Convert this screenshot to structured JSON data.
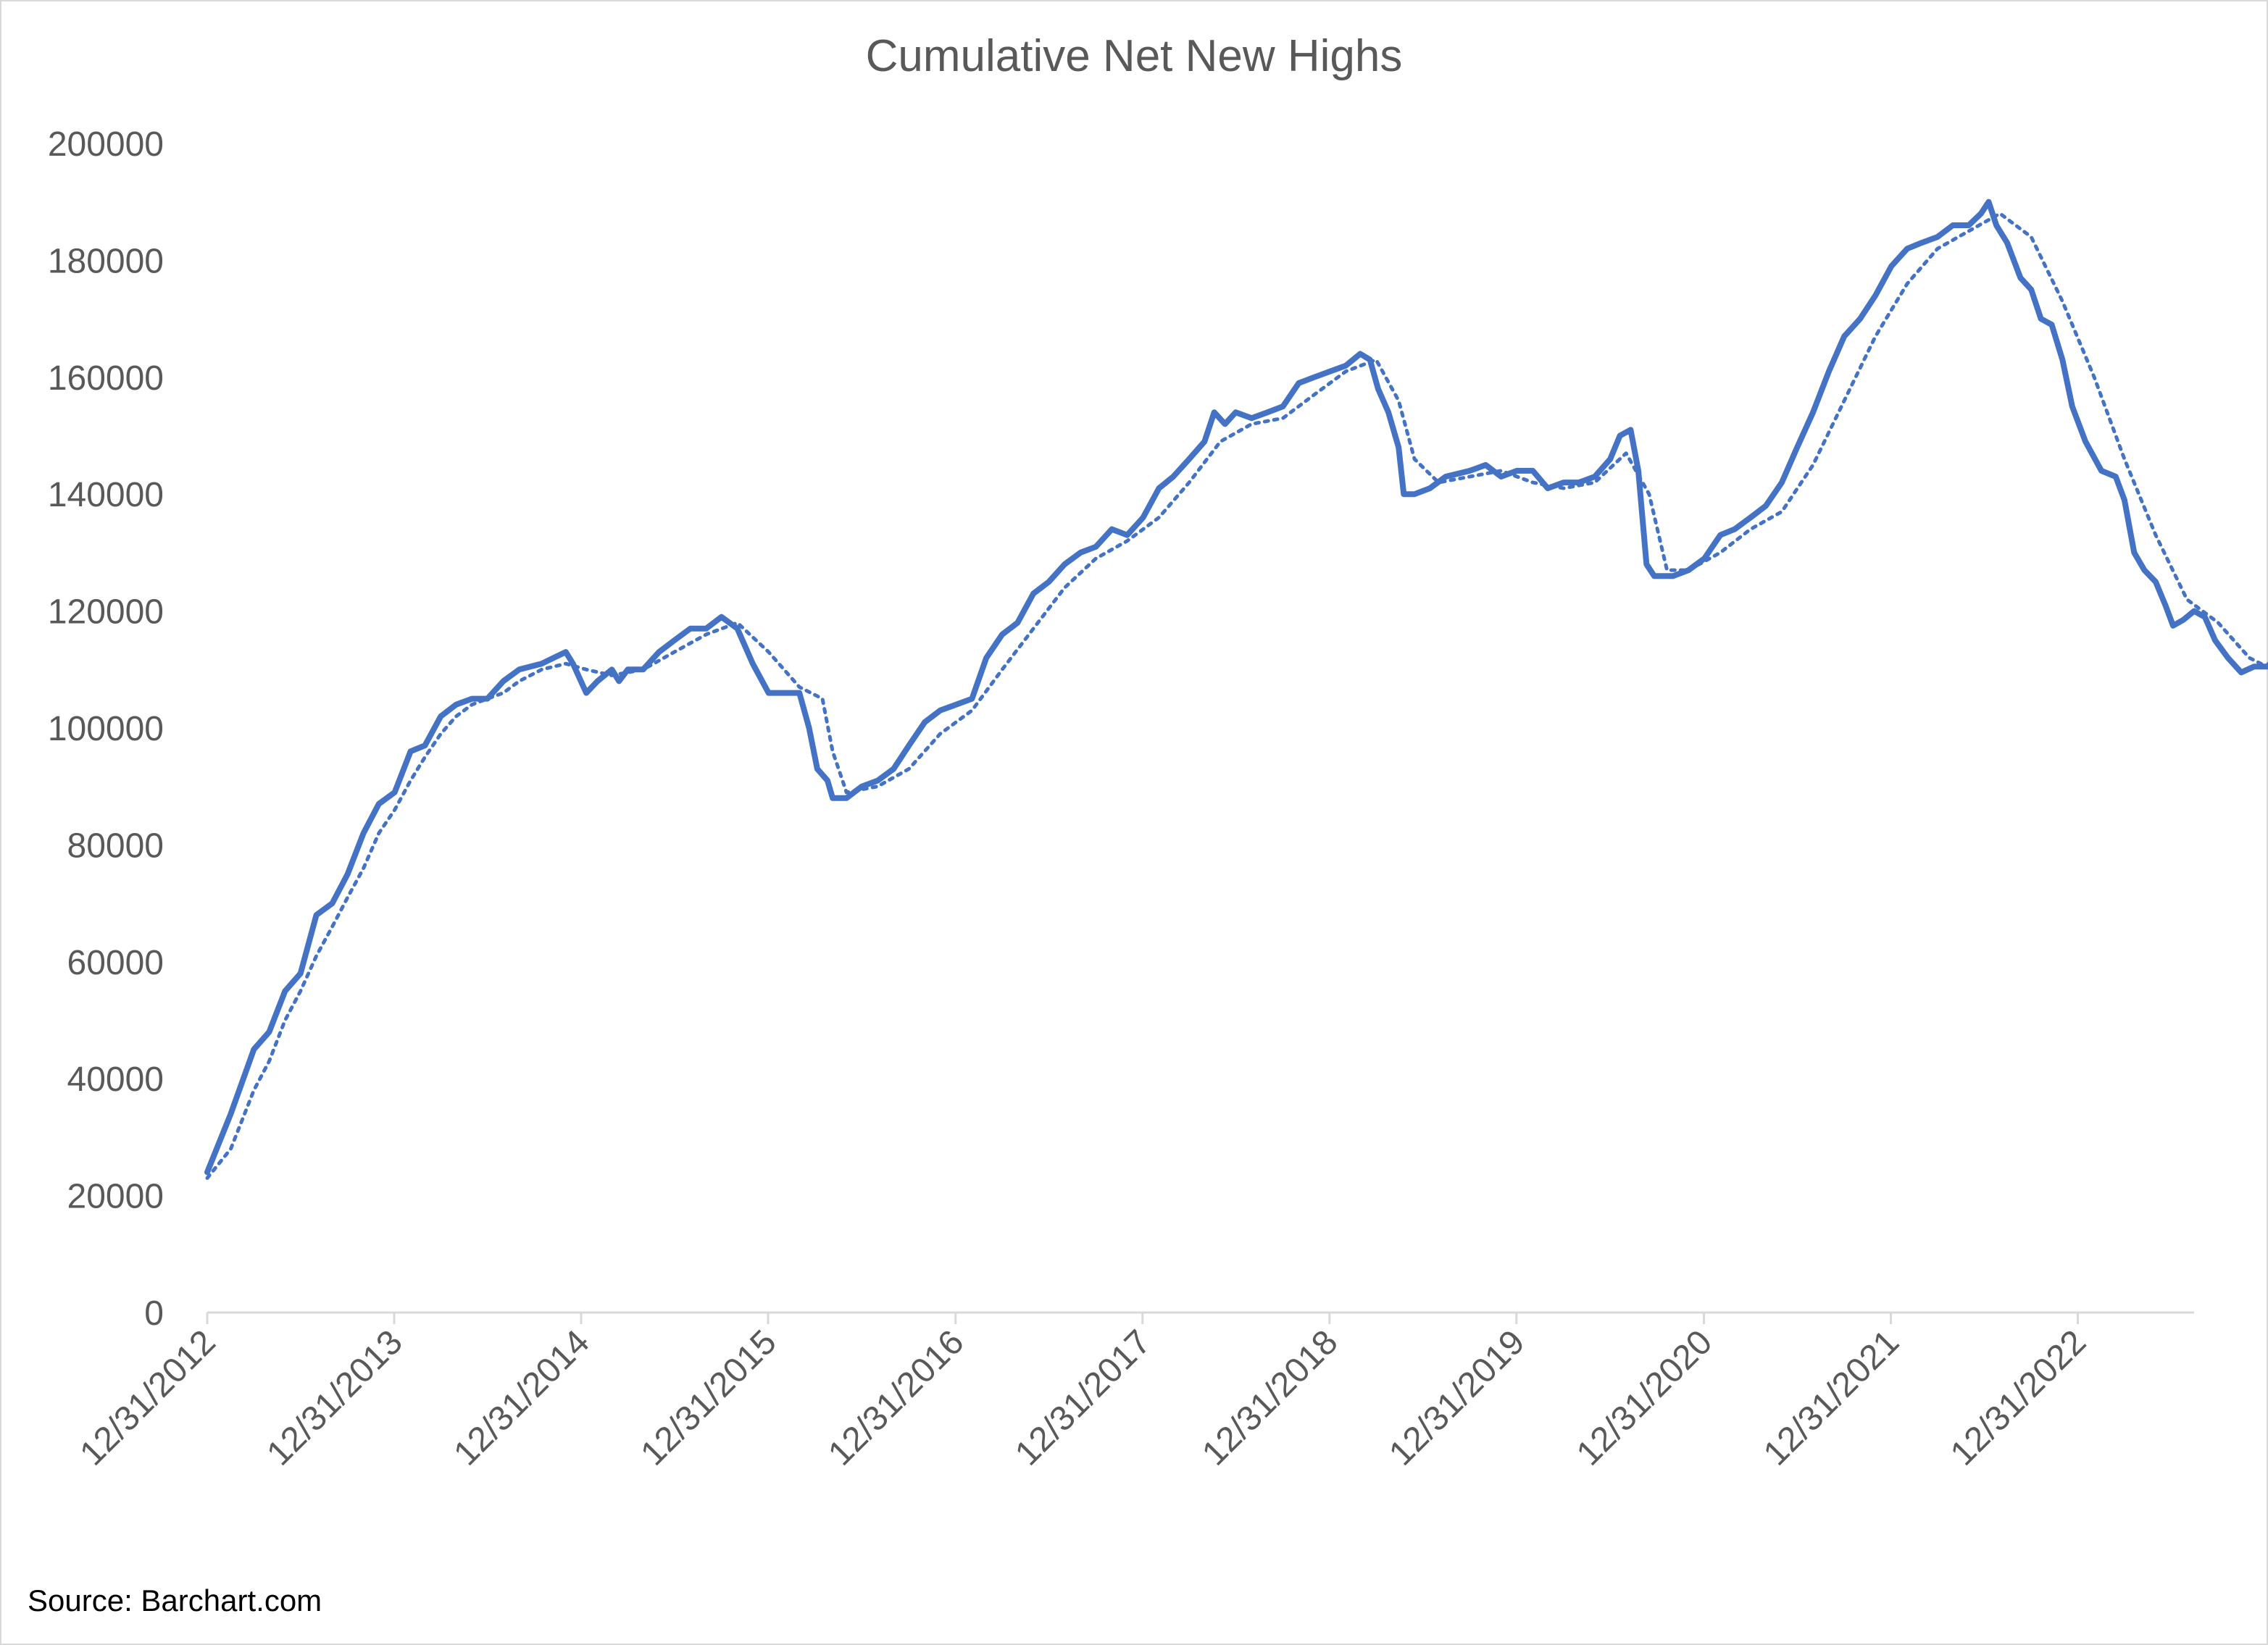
{
  "chart_data": {
    "type": "line",
    "title": "Cumulative Net New Highs",
    "source": "Source: Barchart.com",
    "xlabel": "",
    "ylabel": "",
    "x_range": [
      "12/31/2012",
      "08/15/2023"
    ],
    "x_ticks": [
      "12/31/2012",
      "12/31/2013",
      "12/31/2014",
      "12/31/2015",
      "12/31/2016",
      "12/31/2017",
      "12/31/2018",
      "12/31/2019",
      "12/31/2020",
      "12/31/2021",
      "12/31/2022"
    ],
    "ylim": [
      0,
      200000
    ],
    "y_ticks": [
      0,
      20000,
      40000,
      60000,
      80000,
      100000,
      120000,
      140000,
      160000,
      180000,
      200000
    ],
    "grid": false,
    "legend": "none",
    "colors": {
      "line": "#4472c4",
      "text": "#595959",
      "axis": "#d9d9d9"
    },
    "series": [
      {
        "style": "solid",
        "points": [
          [
            "2012-12-31",
            24000
          ],
          [
            "2013-02-15",
            34000
          ],
          [
            "2013-04-01",
            45000
          ],
          [
            "2013-05-01",
            48000
          ],
          [
            "2013-06-01",
            55000
          ],
          [
            "2013-07-01",
            58000
          ],
          [
            "2013-08-01",
            68000
          ],
          [
            "2013-09-01",
            70000
          ],
          [
            "2013-10-01",
            75000
          ],
          [
            "2013-11-01",
            82000
          ],
          [
            "2013-12-01",
            87000
          ],
          [
            "2014-01-01",
            89000
          ],
          [
            "2014-02-01",
            96000
          ],
          [
            "2014-03-01",
            97000
          ],
          [
            "2014-04-01",
            102000
          ],
          [
            "2014-05-01",
            104000
          ],
          [
            "2014-06-01",
            105000
          ],
          [
            "2014-07-01",
            105000
          ],
          [
            "2014-08-01",
            108000
          ],
          [
            "2014-09-01",
            110000
          ],
          [
            "2014-10-15",
            111000
          ],
          [
            "2014-12-01",
            113000
          ],
          [
            "2014-12-15",
            111000
          ],
          [
            "2015-01-10",
            106000
          ],
          [
            "2015-02-01",
            108000
          ],
          [
            "2015-03-01",
            110000
          ],
          [
            "2015-03-15",
            108000
          ],
          [
            "2015-04-01",
            110000
          ],
          [
            "2015-05-01",
            110000
          ],
          [
            "2015-06-01",
            113000
          ],
          [
            "2015-07-01",
            115000
          ],
          [
            "2015-08-01",
            117000
          ],
          [
            "2015-09-01",
            117000
          ],
          [
            "2015-10-01",
            119000
          ],
          [
            "2015-11-01",
            117000
          ],
          [
            "2015-12-01",
            111000
          ],
          [
            "2016-01-01",
            106000
          ],
          [
            "2016-02-01",
            106000
          ],
          [
            "2016-03-01",
            106000
          ],
          [
            "2016-03-20",
            100000
          ],
          [
            "2016-04-05",
            93000
          ],
          [
            "2016-04-25",
            91000
          ],
          [
            "2016-05-05",
            88000
          ],
          [
            "2016-06-01",
            88000
          ],
          [
            "2016-07-01",
            90000
          ],
          [
            "2016-08-01",
            91000
          ],
          [
            "2016-09-01",
            93000
          ],
          [
            "2016-10-01",
            97000
          ],
          [
            "2016-11-01",
            101000
          ],
          [
            "2016-12-01",
            103000
          ],
          [
            "2017-01-01",
            104000
          ],
          [
            "2017-02-01",
            105000
          ],
          [
            "2017-03-01",
            112000
          ],
          [
            "2017-04-01",
            116000
          ],
          [
            "2017-05-01",
            118000
          ],
          [
            "2017-06-01",
            123000
          ],
          [
            "2017-07-01",
            125000
          ],
          [
            "2017-08-01",
            128000
          ],
          [
            "2017-09-01",
            130000
          ],
          [
            "2017-10-01",
            131000
          ],
          [
            "2017-11-01",
            134000
          ],
          [
            "2017-12-01",
            133000
          ],
          [
            "2018-01-01",
            136000
          ],
          [
            "2018-02-01",
            141000
          ],
          [
            "2018-03-01",
            143000
          ],
          [
            "2018-04-01",
            146000
          ],
          [
            "2018-05-01",
            149000
          ],
          [
            "2018-05-20",
            154000
          ],
          [
            "2018-06-10",
            152000
          ],
          [
            "2018-07-01",
            154000
          ],
          [
            "2018-08-01",
            153000
          ],
          [
            "2018-09-01",
            154000
          ],
          [
            "2018-10-01",
            155000
          ],
          [
            "2018-11-01",
            159000
          ],
          [
            "2018-12-01",
            160000
          ],
          [
            "2019-01-01",
            161000
          ],
          [
            "2019-02-01",
            162000
          ],
          [
            "2019-03-01",
            164000
          ],
          [
            "2019-03-20",
            163000
          ],
          [
            "2019-04-05",
            158000
          ],
          [
            "2019-04-25",
            154000
          ],
          [
            "2019-05-15",
            148000
          ],
          [
            "2019-05-25",
            140000
          ],
          [
            "2019-06-15",
            140000
          ],
          [
            "2019-07-15",
            141000
          ],
          [
            "2019-08-15",
            143000
          ],
          [
            "2019-10-01",
            144000
          ],
          [
            "2019-11-01",
            145000
          ],
          [
            "2019-12-01",
            143000
          ],
          [
            "2020-01-01",
            144000
          ],
          [
            "2020-02-01",
            144000
          ],
          [
            "2020-03-01",
            141000
          ],
          [
            "2020-04-01",
            142000
          ],
          [
            "2020-05-01",
            142000
          ],
          [
            "2020-06-01",
            143000
          ],
          [
            "2020-07-01",
            146000
          ],
          [
            "2020-07-20",
            150000
          ],
          [
            "2020-08-10",
            151000
          ],
          [
            "2020-08-25",
            144000
          ],
          [
            "2020-09-10",
            128000
          ],
          [
            "2020-09-25",
            126000
          ],
          [
            "2020-11-01",
            126000
          ],
          [
            "2020-12-01",
            127000
          ],
          [
            "2021-01-01",
            129000
          ],
          [
            "2021-02-01",
            133000
          ],
          [
            "2021-03-01",
            134000
          ],
          [
            "2021-04-01",
            136000
          ],
          [
            "2021-05-01",
            138000
          ],
          [
            "2021-06-01",
            142000
          ],
          [
            "2021-07-01",
            148000
          ],
          [
            "2021-08-01",
            154000
          ],
          [
            "2021-09-01",
            161000
          ],
          [
            "2021-10-01",
            167000
          ],
          [
            "2021-11-01",
            170000
          ],
          [
            "2021-12-01",
            174000
          ],
          [
            "2022-01-01",
            179000
          ],
          [
            "2022-02-01",
            182000
          ],
          [
            "2022-03-01",
            183000
          ],
          [
            "2022-04-01",
            184000
          ],
          [
            "2022-05-01",
            186000
          ],
          [
            "2022-06-01",
            186000
          ],
          [
            "2022-06-25",
            188000
          ],
          [
            "2022-07-10",
            190000
          ],
          [
            "2022-07-25",
            186000
          ],
          [
            "2022-08-15",
            183000
          ],
          [
            "2022-09-10",
            177000
          ],
          [
            "2022-10-01",
            175000
          ],
          [
            "2022-10-20",
            170000
          ],
          [
            "2022-11-10",
            169000
          ],
          [
            "2022-12-01",
            163000
          ],
          [
            "2022-12-20",
            155000
          ],
          [
            "2023-01-15",
            149000
          ],
          [
            "2023-02-15",
            144000
          ],
          [
            "2023-03-15",
            143000
          ],
          [
            "2023-04-01",
            139000
          ],
          [
            "2023-04-20",
            130000
          ],
          [
            "2023-05-10",
            127000
          ],
          [
            "2023-06-01",
            125000
          ],
          [
            "2023-06-20",
            121000
          ],
          [
            "2023-07-05",
            117500
          ],
          [
            "2023-07-25",
            118500
          ],
          [
            "2023-08-15",
            120000
          ],
          [
            "2023-09-05",
            119000
          ],
          [
            "2023-09-25",
            115000
          ],
          [
            "2023-10-20",
            112000
          ],
          [
            "2023-11-15",
            109500
          ],
          [
            "2023-12-10",
            110500
          ],
          [
            "2024-01-05",
            110500
          ],
          [
            "2024-01-25",
            112500
          ],
          [
            "2024-02-05",
            111500
          ]
        ]
      },
      {
        "style": "dotted",
        "points": [
          [
            "2012-12-31",
            23000
          ],
          [
            "2013-02-15",
            28000
          ],
          [
            "2013-04-01",
            38000
          ],
          [
            "2013-05-01",
            43000
          ],
          [
            "2013-06-01",
            50000
          ],
          [
            "2013-07-01",
            55000
          ],
          [
            "2013-08-01",
            61000
          ],
          [
            "2013-09-01",
            66000
          ],
          [
            "2013-10-01",
            71000
          ],
          [
            "2013-11-01",
            76000
          ],
          [
            "2013-12-01",
            82000
          ],
          [
            "2014-01-01",
            86000
          ],
          [
            "2014-02-01",
            91000
          ],
          [
            "2014-03-01",
            95000
          ],
          [
            "2014-04-01",
            99000
          ],
          [
            "2014-05-01",
            102000
          ],
          [
            "2014-06-01",
            104000
          ],
          [
            "2014-07-01",
            105000
          ],
          [
            "2014-08-01",
            106000
          ],
          [
            "2014-09-01",
            108000
          ],
          [
            "2014-10-15",
            110000
          ],
          [
            "2014-12-01",
            111000
          ],
          [
            "2015-01-10",
            110000
          ],
          [
            "2015-03-01",
            109000
          ],
          [
            "2015-05-01",
            110000
          ],
          [
            "2015-07-01",
            113000
          ],
          [
            "2015-09-01",
            116000
          ],
          [
            "2015-11-01",
            118000
          ],
          [
            "2016-01-01",
            113000
          ],
          [
            "2016-03-01",
            107000
          ],
          [
            "2016-04-15",
            105000
          ],
          [
            "2016-05-05",
            96000
          ],
          [
            "2016-06-01",
            89000
          ],
          [
            "2016-08-01",
            90000
          ],
          [
            "2016-10-01",
            93000
          ],
          [
            "2016-12-01",
            99000
          ],
          [
            "2017-02-01",
            103000
          ],
          [
            "2017-04-01",
            110000
          ],
          [
            "2017-06-01",
            117000
          ],
          [
            "2017-08-01",
            124000
          ],
          [
            "2017-10-01",
            129000
          ],
          [
            "2017-12-01",
            132000
          ],
          [
            "2018-02-01",
            136000
          ],
          [
            "2018-04-01",
            142000
          ],
          [
            "2018-06-01",
            149000
          ],
          [
            "2018-08-01",
            152000
          ],
          [
            "2018-10-01",
            153000
          ],
          [
            "2018-12-01",
            157000
          ],
          [
            "2019-02-01",
            161000
          ],
          [
            "2019-04-01",
            163000
          ],
          [
            "2019-05-15",
            156000
          ],
          [
            "2019-06-15",
            146000
          ],
          [
            "2019-08-01",
            142000
          ],
          [
            "2019-10-01",
            143000
          ],
          [
            "2019-12-01",
            144000
          ],
          [
            "2020-02-01",
            142000
          ],
          [
            "2020-04-01",
            141000
          ],
          [
            "2020-06-01",
            142000
          ],
          [
            "2020-08-01",
            147000
          ],
          [
            "2020-09-15",
            140000
          ],
          [
            "2020-10-20",
            127000
          ],
          [
            "2020-12-01",
            127000
          ],
          [
            "2021-02-01",
            130000
          ],
          [
            "2021-04-01",
            134000
          ],
          [
            "2021-06-01",
            137000
          ],
          [
            "2021-08-01",
            145000
          ],
          [
            "2021-10-01",
            156000
          ],
          [
            "2021-12-01",
            167000
          ],
          [
            "2022-02-01",
            176000
          ],
          [
            "2022-04-01",
            182000
          ],
          [
            "2022-06-01",
            185000
          ],
          [
            "2022-08-01",
            188000
          ],
          [
            "2022-10-01",
            184000
          ],
          [
            "2022-12-01",
            173000
          ],
          [
            "2023-02-01",
            160000
          ],
          [
            "2023-04-01",
            146000
          ],
          [
            "2023-06-01",
            133000
          ],
          [
            "2023-08-01",
            122000
          ],
          [
            "2023-10-01",
            118000
          ],
          [
            "2023-12-01",
            112000
          ],
          [
            "2024-01-15",
            110000
          ],
          [
            "2024-02-05",
            110500
          ]
        ]
      }
    ]
  }
}
